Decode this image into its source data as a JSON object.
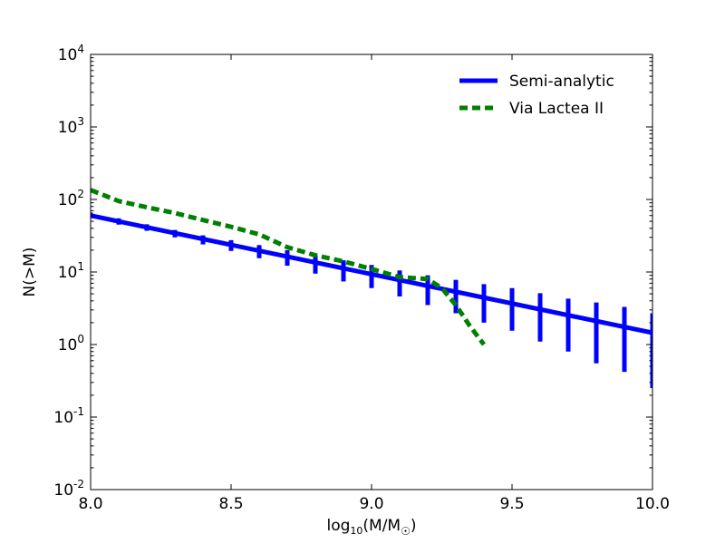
{
  "chart_data": {
    "type": "line",
    "xlabel": "log10(M/M☉)",
    "xlabel_main": "log",
    "xlabel_sub": "10",
    "xlabel_rest": "(M/M",
    "xlabel_sub2": "☉",
    "xlabel_end": ")",
    "ylabel": "N(>M)",
    "xlim": [
      8.0,
      10.0
    ],
    "ylim_log10": [
      -2,
      4
    ],
    "yscale": "log",
    "grid": false,
    "legend_position": "top-right",
    "x_ticks": [
      "8.0",
      "8.5",
      "9.0",
      "9.5",
      "10.0"
    ],
    "y_ticks": [
      {
        "base": "10",
        "exp": "-2"
      },
      {
        "base": "10",
        "exp": "-1"
      },
      {
        "base": "10",
        "exp": "0"
      },
      {
        "base": "10",
        "exp": "1"
      },
      {
        "base": "10",
        "exp": "2"
      },
      {
        "base": "10",
        "exp": "3"
      },
      {
        "base": "10",
        "exp": "4"
      }
    ],
    "series": [
      {
        "name": "Semi-analytic",
        "color": "#0000ff",
        "style": "solid",
        "x": [
          8.0,
          10.0
        ],
        "y": [
          60,
          1.45
        ],
        "errorbars": {
          "x": [
            8.0,
            8.1,
            8.2,
            8.3,
            8.4,
            8.5,
            8.6,
            8.7,
            8.8,
            8.9,
            9.0,
            9.1,
            9.2,
            9.3,
            9.4,
            9.5,
            9.6,
            9.7,
            9.8,
            9.9,
            10.0
          ],
          "y": [
            60,
            49.6,
            41.0,
            33.9,
            28.0,
            23.2,
            19.2,
            15.8,
            13.1,
            10.8,
            9.3,
            7.4,
            6.1,
            5.1,
            4.2,
            3.5,
            2.9,
            2.4,
            2.0,
            1.6,
            1.45
          ],
          "lower": [
            55,
            45,
            37,
            30,
            24,
            19.5,
            15.5,
            12.2,
            9.5,
            7.4,
            6.0,
            4.6,
            3.5,
            2.7,
            2.0,
            1.55,
            1.1,
            0.8,
            0.55,
            0.42,
            0.25
          ],
          "upper": [
            66,
            55,
            45.5,
            38,
            32,
            27.5,
            23.5,
            20,
            17,
            14.5,
            12.5,
            10.5,
            9.0,
            7.8,
            6.8,
            6.0,
            5.1,
            4.3,
            3.8,
            3.3,
            2.7
          ]
        }
      },
      {
        "name": "Via Lactea II",
        "color": "#008000",
        "style": "dashed",
        "x": [
          8.0,
          8.1,
          8.2,
          8.3,
          8.4,
          8.5,
          8.6,
          8.7,
          8.8,
          8.9,
          9.0,
          9.1,
          9.2,
          9.25,
          9.3,
          9.35,
          9.4
        ],
        "y": [
          135,
          95,
          78,
          65,
          52,
          42,
          33,
          22,
          17,
          14,
          11,
          8.5,
          8,
          6,
          3.5,
          1.8,
          1.0
        ]
      }
    ]
  }
}
